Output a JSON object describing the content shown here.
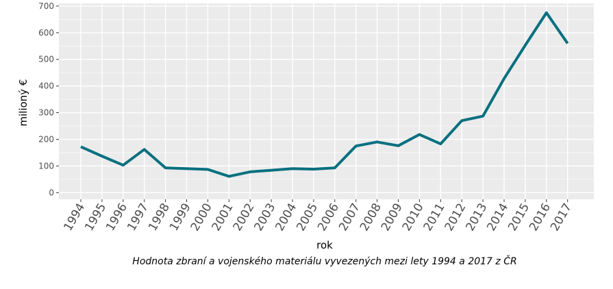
{
  "chart_data": {
    "type": "line",
    "x": [
      "1994",
      "1995",
      "1996",
      "1997",
      "1998",
      "1999",
      "2000",
      "2001",
      "2002",
      "2003",
      "2004",
      "2005",
      "2006",
      "2007",
      "2008",
      "2009",
      "2010",
      "2011",
      "2012",
      "2013",
      "2014",
      "2015",
      "2016",
      "2017"
    ],
    "series": [
      {
        "values": [
          172,
          137,
          103,
          162,
          93,
          90,
          87,
          61,
          78,
          84,
          90,
          88,
          93,
          175,
          190,
          176,
          218,
          183,
          270,
          287,
          428,
          553,
          675,
          560
        ]
      }
    ],
    "xlabel": "rok",
    "ylabel": "milioný €",
    "caption": "Hodnota zbraní a vojenského materiálu vyvezených mezi lety 1994 a 2017 z ČR",
    "ylim": [
      -25,
      710
    ],
    "yticks": [
      0,
      100,
      200,
      300,
      400,
      500,
      600,
      700
    ],
    "grid": true,
    "line_color": "#08707f",
    "panel_color": "#ebebeb",
    "grid_color": "#ffffff"
  }
}
